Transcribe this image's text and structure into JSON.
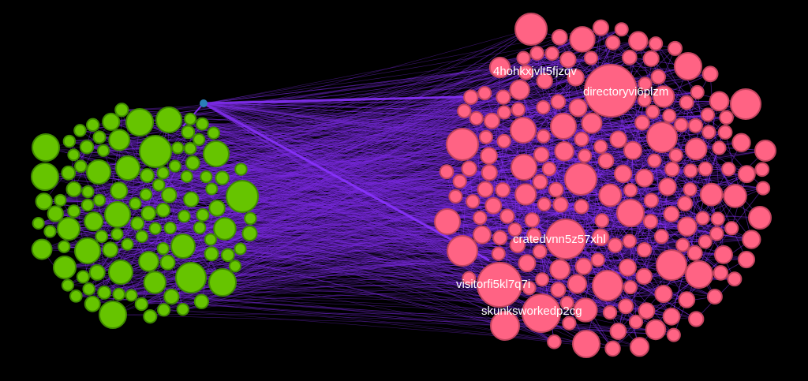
{
  "colors": {
    "background": "#000000",
    "edge": "#7a2be0",
    "edge_strong": "#8a33ff",
    "green_fill": "#66c400",
    "green_stroke": "#3f8a00",
    "pink_fill": "#ff6384",
    "pink_stroke": "#c2445f",
    "hub": "#2a7fb8",
    "label": "#ffffff"
  },
  "node_labels": [
    "4hohkxjvlt5fjzqv",
    "directoryvi6plzm",
    "cratedvnn5z57xhl",
    "visitorfi5kl7q7i",
    "skunksworkedp2cg"
  ]
}
